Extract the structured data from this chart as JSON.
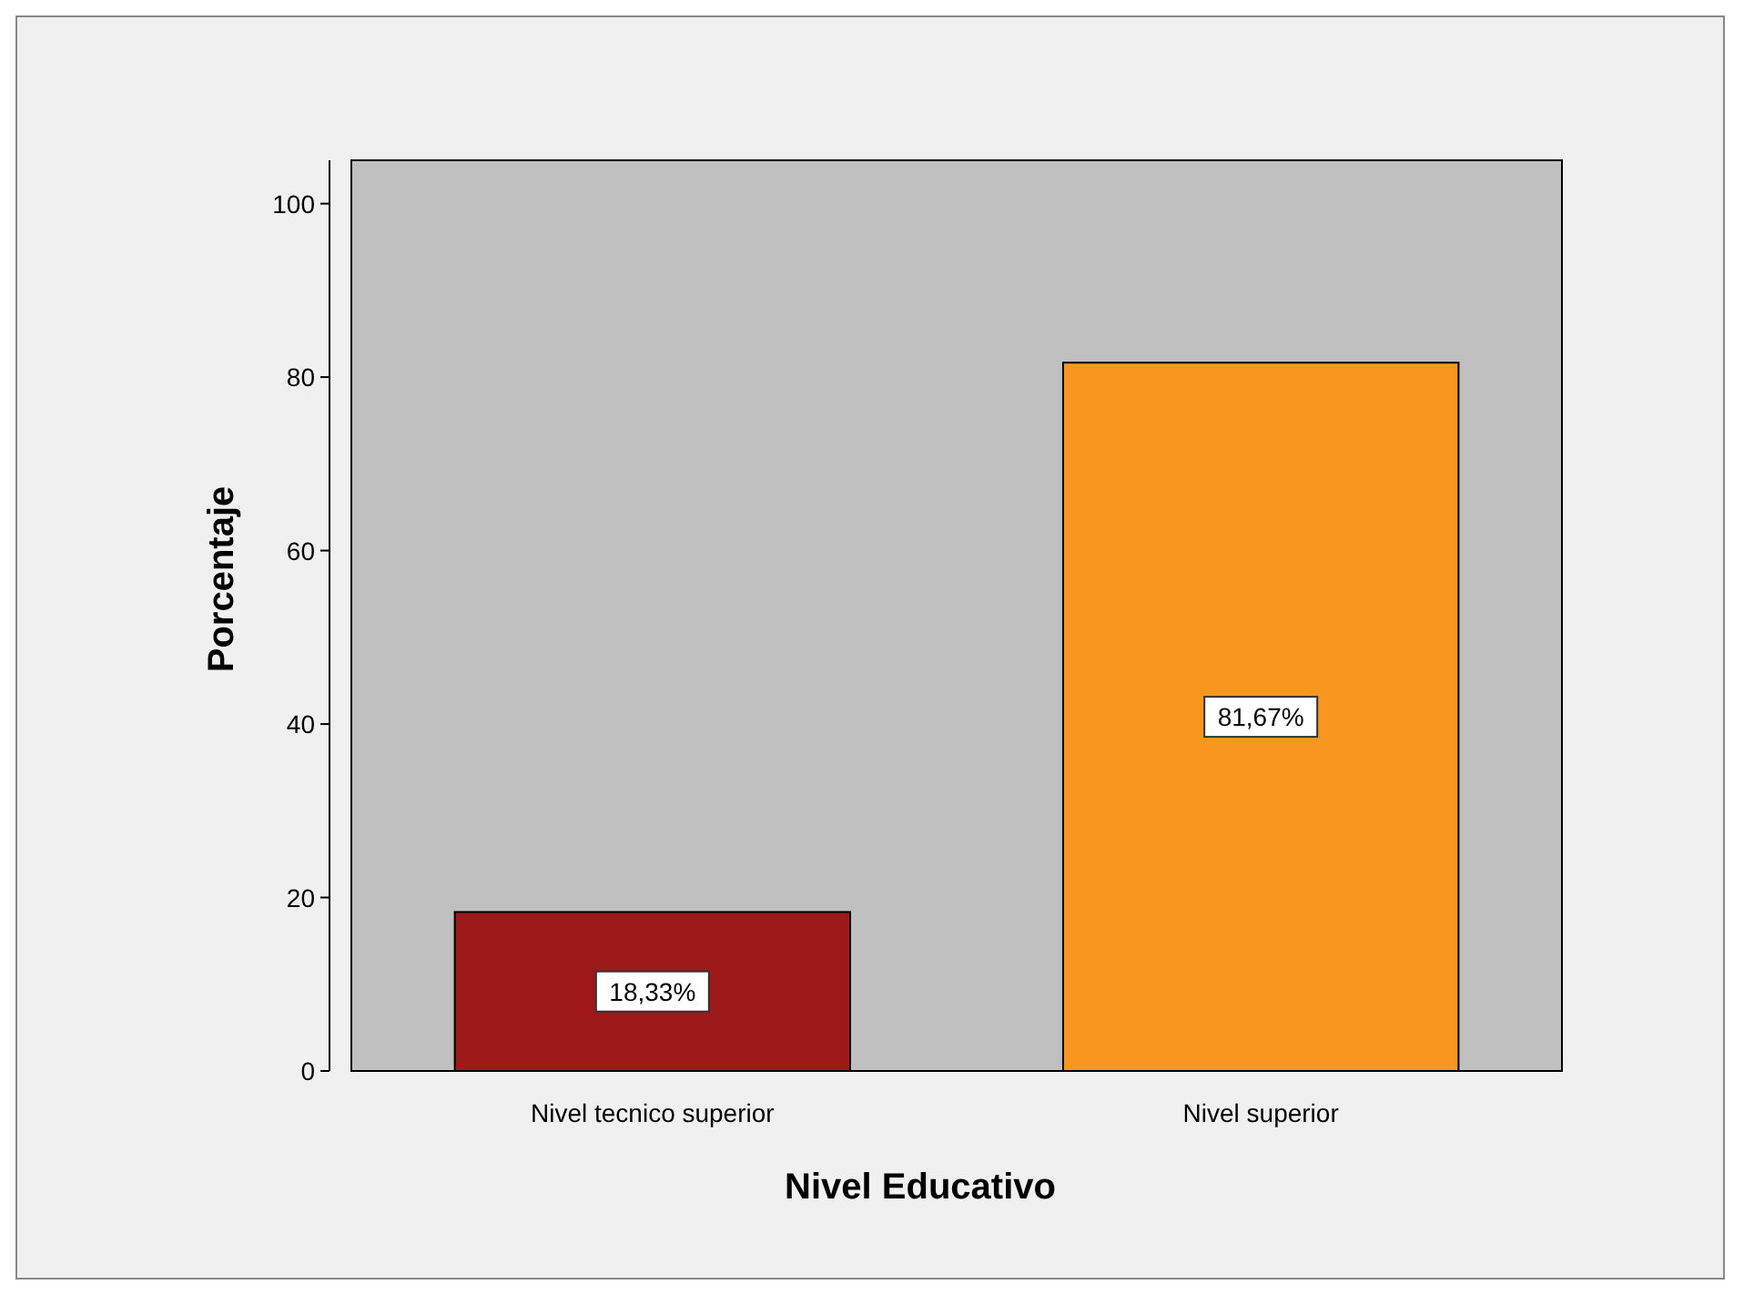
{
  "chart_data": {
    "type": "bar",
    "xlabel": "Nivel Educativo",
    "ylabel": "Porcentaje",
    "categories": [
      "Nivel tecnico superior",
      "Nivel superior"
    ],
    "values": [
      18.33,
      81.67
    ],
    "colors": [
      "#9e1a1a",
      "#f7971f"
    ],
    "value_labels": [
      "18,33%",
      "81,67%"
    ],
    "ylim": [
      0,
      105
    ],
    "yticks": [
      0,
      20,
      40,
      60,
      80,
      100
    ],
    "grid": false
  }
}
